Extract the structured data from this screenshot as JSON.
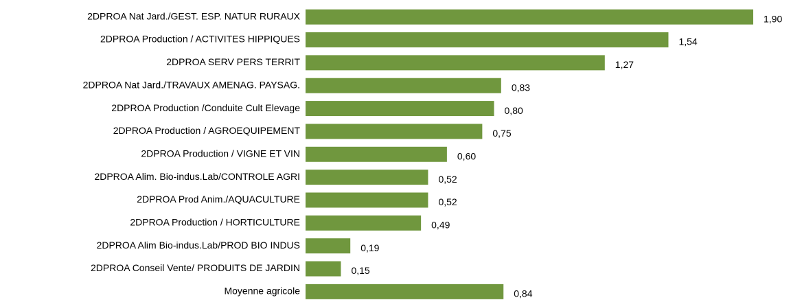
{
  "chart_data": {
    "type": "barh",
    "categories": [
      "2DPROA Nat Jard./GEST. ESP. NATUR RURAUX",
      "2DPROA Production / ACTIVITES HIPPIQUES",
      "2DPROA SERV PERS TERRIT",
      "2DPROA Nat Jard./TRAVAUX AMENAG. PAYSAG.",
      "2DPROA Production /Conduite Cult Elevage",
      "2DPROA Production / AGROEQUIPEMENT",
      "2DPROA Production / VIGNE ET VIN",
      "2DPROA Alim. Bio-indus.Lab/CONTROLE AGRI",
      "2DPROA Prod Anim./AQUACULTURE",
      "2DPROA Production / HORTICULTURE",
      "2DPROA Alim Bio-indus.Lab/PROD BIO INDUS",
      "2DPROA Conseil Vente/ PRODUITS DE JARDIN",
      "Moyenne agricole"
    ],
    "values": [
      1.9,
      1.54,
      1.27,
      0.83,
      0.8,
      0.75,
      0.6,
      0.52,
      0.52,
      0.49,
      0.19,
      0.15,
      0.84
    ],
    "value_labels": [
      "1,90",
      "1,54",
      "1,27",
      "0,83",
      "0,80",
      "0,75",
      "0,60",
      "0,52",
      "0,52",
      "0,49",
      "0,19",
      "0,15",
      "0,84"
    ],
    "color": "#70973e"
  }
}
